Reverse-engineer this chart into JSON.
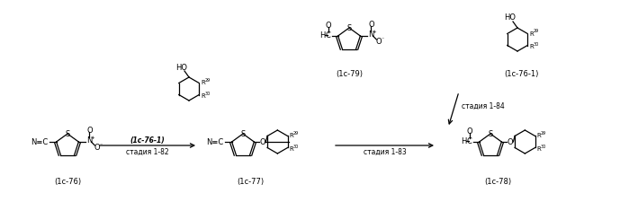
{
  "bg_color": "#ffffff",
  "fig_width": 6.99,
  "fig_height": 2.26,
  "dpi": 100,
  "structures": {
    "1c76_label": "(1c-76)",
    "1c77_label": "(1c-77)",
    "1c78_label": "(1c-78)",
    "1c79_label": "(1c-79)",
    "1c761_label": "(1c-76-1)",
    "stage82": "стадия 1-82",
    "stage83": "стадия 1-83",
    "stage84": "стадия 1-84",
    "reagent82": "(1c-76-1)",
    "reagent84": "(1c-76-1)"
  }
}
